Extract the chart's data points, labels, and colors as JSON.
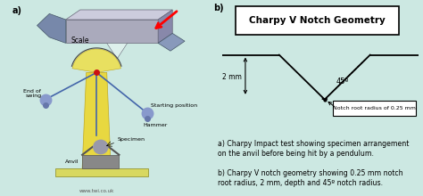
{
  "background_color": "#cce8e2",
  "right_bg": "#ddf0ec",
  "left_bg": "#ddf0ec",
  "title_b": "Charpy V Notch Geometry",
  "label_a": "a)",
  "label_b": "b)",
  "caption_a": "a) Charpy Impact test showing specimen arrangement\non the anvil before being hit by a pendulum.",
  "caption_b": "b) Charpy V notch geometry showing 0.25 mm notch\nroot radius, 2 mm, depth and 45º notch radius.",
  "depth_label": "2 mm",
  "angle_label": "45º",
  "notch_label": "Notch root radius of 0.25 mm",
  "scale_label": "Scale",
  "start_label": "Starting position",
  "swing_label": "End of\nswing",
  "hammer_label": "Hammer",
  "specimen_label": "Specimen",
  "anvil_label": "Anvil",
  "url_label": "www.twi.co.uk"
}
